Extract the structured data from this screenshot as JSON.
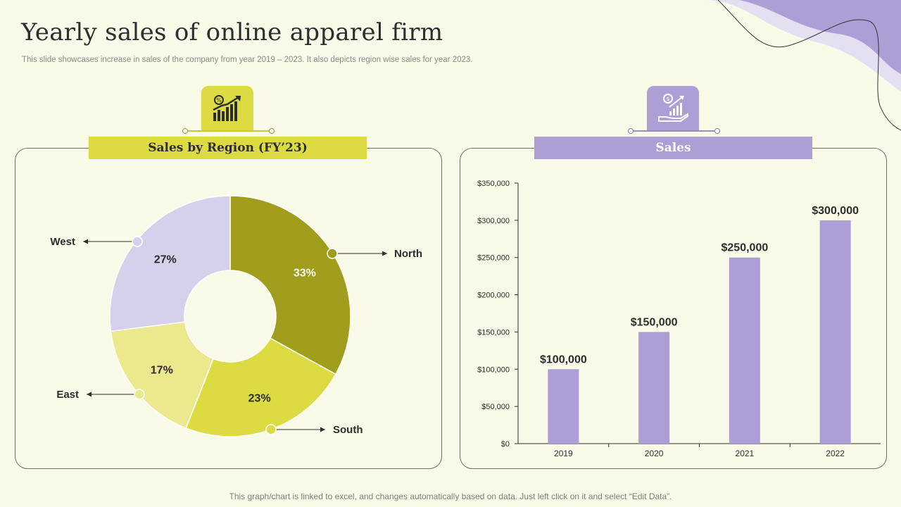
{
  "header": {
    "title": "Yearly sales of online apparel firm",
    "subtitle": "This slide showcases increase in sales of the company from year 2019 – 2023. It also depicts region wise sales for year 2023."
  },
  "footer": {
    "note": "This graph/chart is linked to excel, and changes automatically based on data. Just left click on it and select “Edit Data”."
  },
  "colors": {
    "background": "#fafae8",
    "yellow_accent": "#dddb42",
    "purple_accent": "#ad9ed6",
    "north": "#a09d1c",
    "south": "#dddb42",
    "east": "#ebe88e",
    "west": "#d6d0ea",
    "bar": "#ad9ed6"
  },
  "icons": {
    "left_icon": "growth-chart-icon",
    "right_icon": "sales-hand-chart-icon"
  },
  "chart_data": [
    {
      "type": "pie",
      "title": "Sales by Region (FY’23)",
      "donut": true,
      "slices": [
        {
          "name": "North",
          "value": 33,
          "label": "33%"
        },
        {
          "name": "South",
          "value": 23,
          "label": "23%"
        },
        {
          "name": "East",
          "value": 17,
          "label": "17%"
        },
        {
          "name": "West",
          "value": 27,
          "label": "27%"
        }
      ]
    },
    {
      "type": "bar",
      "title": "Sales",
      "categories": [
        "2019",
        "2020",
        "2021",
        "2022"
      ],
      "values": [
        100000,
        150000,
        250000,
        300000
      ],
      "data_labels": [
        "$100,000",
        "$150,000",
        "$250,000",
        "$300,000"
      ],
      "ylim": [
        0,
        350000
      ],
      "yticks": [
        0,
        50000,
        100000,
        150000,
        200000,
        250000,
        300000,
        350000
      ],
      "ytick_labels": [
        "$0",
        "$50,000",
        "$100,000",
        "$150,000",
        "$200,000",
        "$250,000",
        "$300,000",
        "$350,000"
      ],
      "grid": false
    }
  ]
}
